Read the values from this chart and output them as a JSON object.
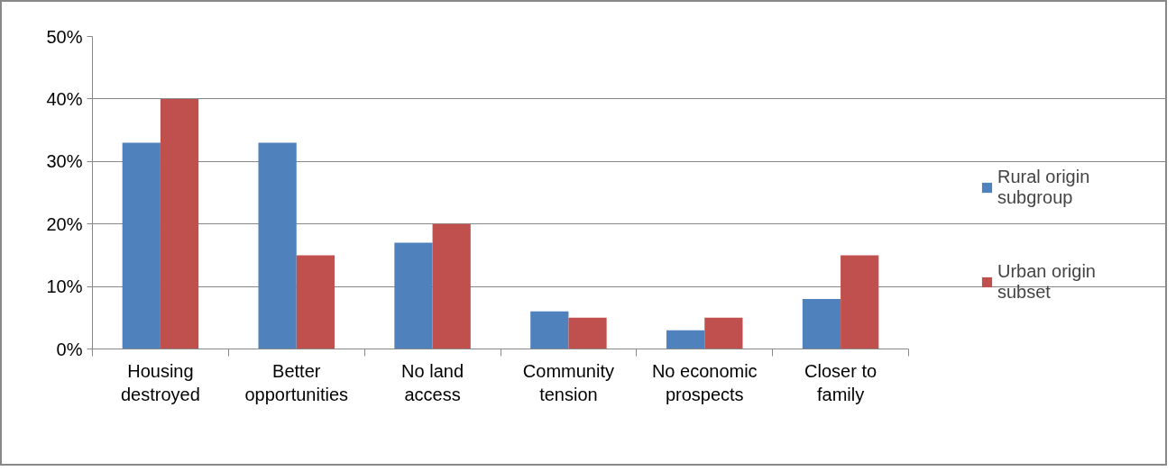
{
  "chart_data": {
    "type": "bar",
    "categories": [
      "Housing destroyed",
      "Better opportunities",
      "No land access",
      "Community tension",
      "No economic prospects",
      "Closer to family"
    ],
    "series": [
      {
        "name": "Rural origin subgroup",
        "color": "#4f81bd",
        "values": [
          33,
          33,
          17,
          6,
          3,
          8
        ]
      },
      {
        "name": "Urban origin subset",
        "color": "#c0504d",
        "values": [
          40,
          15,
          20,
          5,
          5,
          15
        ]
      }
    ],
    "ylim": [
      0,
      50
    ],
    "yticks": [
      {
        "value": 0,
        "label": "0%"
      },
      {
        "value": 10,
        "label": "10%"
      },
      {
        "value": 20,
        "label": "20%"
      },
      {
        "value": 30,
        "label": "30%"
      },
      {
        "value": 40,
        "label": "40%"
      },
      {
        "value": 50,
        "label": "50%"
      }
    ],
    "grid": "y",
    "legend": "right"
  }
}
